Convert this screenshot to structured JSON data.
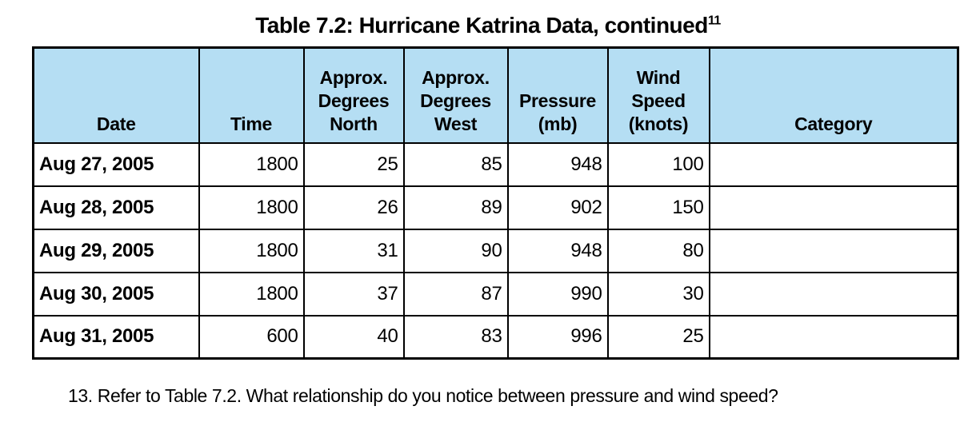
{
  "colors": {
    "header_bg": "#B5DEF3",
    "border": "#000000",
    "text": "#000000"
  },
  "title": {
    "main": "Table 7.2: Hurricane Katrina Data, continued",
    "superscript": "11"
  },
  "chart_data": {
    "type": "table",
    "title": "Table 7.2: Hurricane Katrina Data, continued",
    "columns": [
      "Date",
      "Time",
      "Approx. Degrees North",
      "Approx. Degrees West",
      "Pressure (mb)",
      "Wind Speed (knots)",
      "Category"
    ],
    "rows": [
      [
        "Aug 27, 2005",
        1800,
        25,
        85,
        948,
        100,
        ""
      ],
      [
        "Aug 28, 2005",
        1800,
        26,
        89,
        902,
        150,
        ""
      ],
      [
        "Aug 29, 2005",
        1800,
        31,
        90,
        948,
        80,
        ""
      ],
      [
        "Aug 30, 2005",
        1800,
        37,
        87,
        990,
        30,
        ""
      ],
      [
        "Aug 31, 2005",
        600,
        40,
        83,
        996,
        25,
        ""
      ]
    ]
  },
  "table": {
    "headers": [
      "Date",
      "Time",
      "Approx.\nDegrees\nNorth",
      "Approx.\nDegrees\nWest",
      "Pressure\n(mb)",
      "Wind\nSpeed\n(knots)",
      "Category"
    ],
    "rows": [
      {
        "date": "Aug 27, 2005",
        "time": "1800",
        "deg_north": "25",
        "deg_west": "85",
        "pressure": "948",
        "wind_speed": "100",
        "category": ""
      },
      {
        "date": "Aug 28, 2005",
        "time": "1800",
        "deg_north": "26",
        "deg_west": "89",
        "pressure": "902",
        "wind_speed": "150",
        "category": ""
      },
      {
        "date": "Aug 29, 2005",
        "time": "1800",
        "deg_north": "31",
        "deg_west": "90",
        "pressure": "948",
        "wind_speed": "80",
        "category": ""
      },
      {
        "date": "Aug 30, 2005",
        "time": "1800",
        "deg_north": "37",
        "deg_west": "87",
        "pressure": "990",
        "wind_speed": "30",
        "category": ""
      },
      {
        "date": "Aug 31, 2005",
        "time": "600",
        "deg_north": "40",
        "deg_west": "83",
        "pressure": "996",
        "wind_speed": "25",
        "category": ""
      }
    ]
  },
  "question": {
    "text": "13. Refer to Table 7.2. What relationship do you notice between pressure and wind speed?"
  }
}
